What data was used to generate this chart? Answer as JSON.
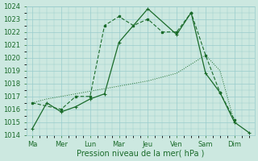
{
  "xlabel": "Pression niveau de la mer( hPa )",
  "ylim": [
    1014,
    1024
  ],
  "background_color": "#cce8e0",
  "grid_color": "#99cccc",
  "line_color": "#1a6b2a",
  "x_labels": [
    "Ma",
    "Mer",
    "Lun",
    "Mar",
    "Jeu",
    "Ven",
    "Sam",
    "Dim"
  ],
  "x_positions": [
    0,
    1,
    2,
    3,
    4,
    5,
    6,
    7
  ],
  "line1_x": [
    0,
    0.5,
    1,
    1.5,
    2,
    2.5,
    3,
    3.5,
    4,
    4.5,
    5,
    5.5,
    6,
    6.5,
    7
  ],
  "line1_y": [
    1016.5,
    1016.8,
    1017.0,
    1017.2,
    1017.4,
    1017.6,
    1017.8,
    1018.0,
    1018.2,
    1018.5,
    1018.8,
    1019.5,
    1020.2,
    1019.0,
    1015.0
  ],
  "line2_x": [
    0,
    1,
    1.5,
    2,
    2.5,
    3,
    3.5,
    4,
    4.5,
    5,
    5.5,
    6,
    6.5,
    7
  ],
  "line2_y": [
    1016.5,
    1016.0,
    1017.0,
    1017.0,
    1022.5,
    1023.2,
    1022.5,
    1023.0,
    1022.0,
    1022.0,
    1023.5,
    1020.2,
    1017.3,
    1015.2
  ],
  "line3_x": [
    0,
    0.5,
    1,
    1.5,
    2,
    2.5,
    3,
    4,
    5,
    5.5,
    6,
    6.5,
    7,
    7.5
  ],
  "line3_y": [
    1014.5,
    1016.5,
    1015.8,
    1016.2,
    1016.8,
    1017.2,
    1021.2,
    1023.8,
    1021.8,
    1023.5,
    1018.8,
    1017.3,
    1015.0,
    1014.2
  ],
  "tick_fontsize": 6,
  "label_fontsize": 7
}
